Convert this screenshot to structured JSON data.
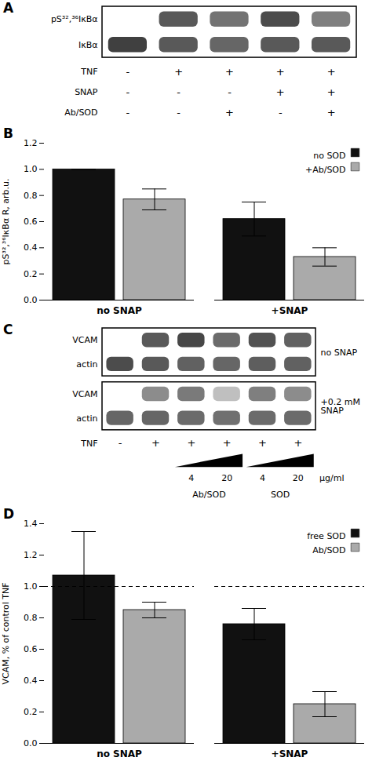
{
  "chart_data": [
    {
      "type": "blot",
      "title": "A",
      "bands": [
        {
          "name": "pS³²,³⁶IκBα",
          "values": [
            0.0,
            0.65,
            0.55,
            0.7,
            0.5
          ]
        },
        {
          "name": "IκBα",
          "values": [
            0.75,
            0.65,
            0.6,
            0.65,
            0.65
          ]
        }
      ],
      "conditions": [
        {
          "name": "TNF",
          "values": [
            "-",
            "+",
            "+",
            "+",
            "+"
          ]
        },
        {
          "name": "SNAP",
          "values": [
            "-",
            "-",
            "-",
            "+",
            "+"
          ]
        },
        {
          "name": "Ab/SOD",
          "values": [
            "-",
            "-",
            "+",
            "-",
            "+"
          ]
        }
      ]
    },
    {
      "type": "bar",
      "title": "B",
      "categories": [
        "no SNAP",
        "+SNAP"
      ],
      "series": [
        {
          "name": "no SOD",
          "color": "#111111",
          "values": [
            1.0,
            0.62
          ],
          "errors": [
            0.0,
            0.13
          ]
        },
        {
          "name": "+Ab/SOD",
          "color": "#aaaaaa",
          "values": [
            0.77,
            0.33
          ],
          "errors": [
            0.08,
            0.07
          ]
        }
      ],
      "ylabel": "pS³²,³⁶IκBα R, arb.u.",
      "ylim": [
        0.0,
        1.2
      ],
      "yticks": [
        {
          "value": 0.0,
          "label": "0.0"
        },
        0.2,
        0.4,
        0.6,
        0.8,
        {
          "value": 1.0,
          "label": "1.0"
        },
        1.2
      ],
      "legend": "upper right"
    },
    {
      "type": "blot",
      "title": "C",
      "blots": [
        {
          "label": "no SNAP",
          "bands": [
            {
              "name": "VCAM",
              "values": [
                0.0,
                0.65,
                0.72,
                0.58,
                0.68,
                0.62
              ]
            },
            {
              "name": "actin",
              "values": [
                0.7,
                0.65,
                0.62,
                0.6,
                0.63,
                0.62
              ]
            }
          ]
        },
        {
          "label": "+0.2 mM\nSNAP",
          "bands": [
            {
              "name": "VCAM",
              "values": [
                0.0,
                0.45,
                0.52,
                0.25,
                0.5,
                0.45
              ]
            },
            {
              "name": "actin",
              "values": [
                0.6,
                0.6,
                0.58,
                0.56,
                0.58,
                0.58
              ]
            }
          ]
        }
      ],
      "conditions": [
        {
          "name": "TNF",
          "values": [
            "-",
            "+",
            "+",
            "+",
            "+",
            "+"
          ]
        }
      ],
      "groups": [
        {
          "name": "Ab/SOD",
          "values": [
            4,
            20
          ]
        },
        {
          "name": "SOD",
          "values": [
            4,
            20
          ]
        }
      ],
      "unit": "μg/ml"
    },
    {
      "type": "bar",
      "title": "D",
      "categories": [
        "no SNAP",
        "+SNAP"
      ],
      "series": [
        {
          "name": "free SOD",
          "color": "#111111",
          "values": [
            1.07,
            0.76
          ],
          "errors": [
            0.28,
            0.1
          ]
        },
        {
          "name": "Ab/SOD",
          "color": "#aaaaaa",
          "values": [
            0.85,
            0.25
          ],
          "errors": [
            0.05,
            0.08
          ]
        }
      ],
      "ylabel": "VCAM, % of control TNF",
      "ylim": [
        0.0,
        1.4
      ],
      "yticks": [
        {
          "value": 0.0,
          "label": "0.0"
        },
        0.2,
        0.4,
        0.6,
        0.8,
        {
          "value": 1.0,
          "label": "1.0"
        },
        1.2,
        1.4
      ],
      "hline": {
        "y": 1.0,
        "line_style": "dashed"
      },
      "legend": "upper right"
    }
  ]
}
